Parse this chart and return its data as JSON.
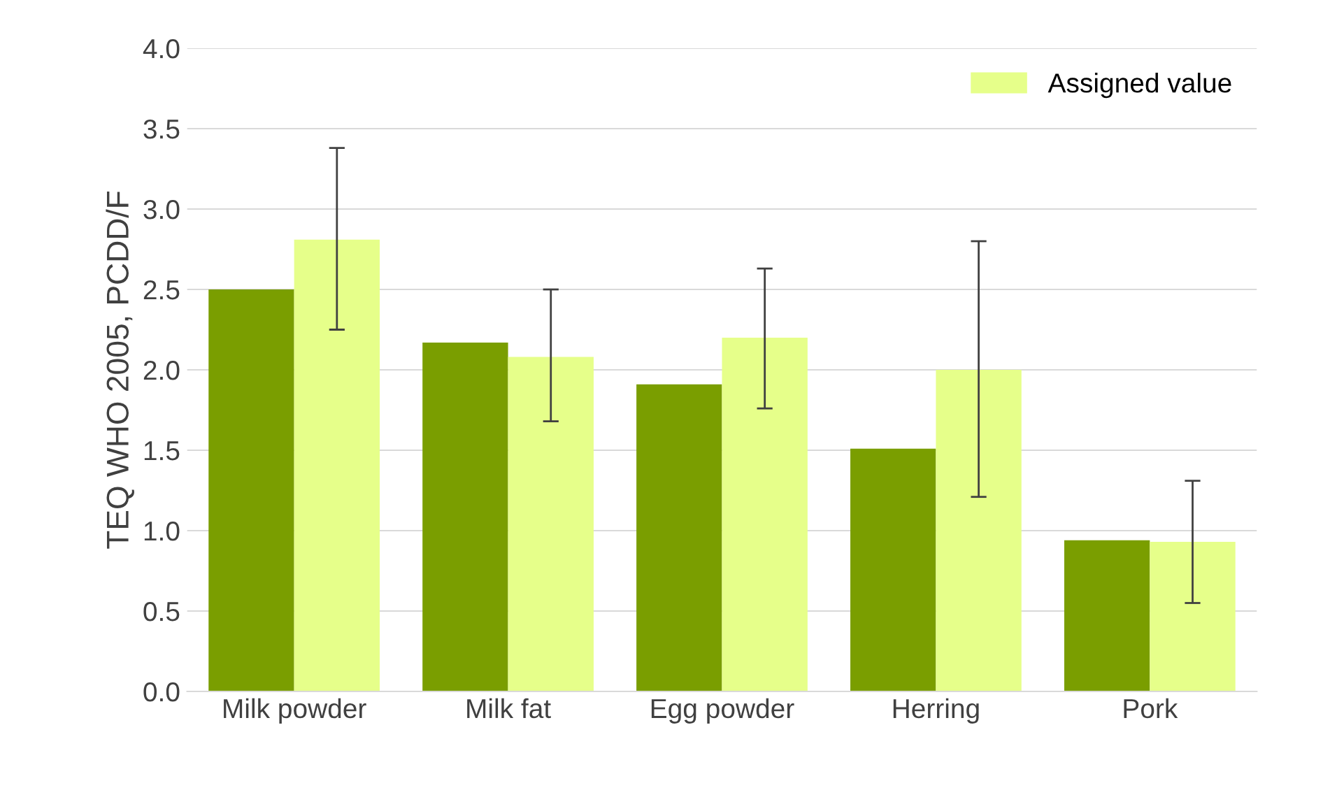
{
  "chart_data": {
    "type": "bar",
    "ylabel": "TEQ WHO 2005, PCDD/F",
    "categories": [
      "Milk powder",
      "Milk fat",
      "Egg powder",
      "Herring",
      "Pork"
    ],
    "series": [
      {
        "color": "#7a9e00",
        "values": [
          2.5,
          2.17,
          1.91,
          1.51,
          0.94
        ]
      },
      {
        "name": "Assigned value",
        "color": "#e6ff8a",
        "values": [
          2.81,
          2.08,
          2.2,
          2.0,
          0.93
        ],
        "errors": [
          [
            2.25,
            3.38
          ],
          [
            1.68,
            2.5
          ],
          [
            1.76,
            2.63
          ],
          [
            1.21,
            2.8
          ],
          [
            0.55,
            1.31
          ]
        ]
      }
    ],
    "ylim": [
      0,
      4.0
    ],
    "yticks": [
      {
        "value": 0,
        "label": "0.0"
      },
      {
        "value": 0.5,
        "label": "0.5"
      },
      {
        "value": 1,
        "label": "1.0"
      },
      {
        "value": 1.5,
        "label": "1.5"
      },
      {
        "value": 2,
        "label": "2.0"
      },
      {
        "value": 2.5,
        "label": "2.5"
      },
      {
        "value": 3,
        "label": "3.0"
      },
      {
        "value": 3.5,
        "label": "3.5"
      },
      {
        "value": 4,
        "label": "4.0"
      }
    ],
    "grid": "y",
    "legend": "top right"
  }
}
